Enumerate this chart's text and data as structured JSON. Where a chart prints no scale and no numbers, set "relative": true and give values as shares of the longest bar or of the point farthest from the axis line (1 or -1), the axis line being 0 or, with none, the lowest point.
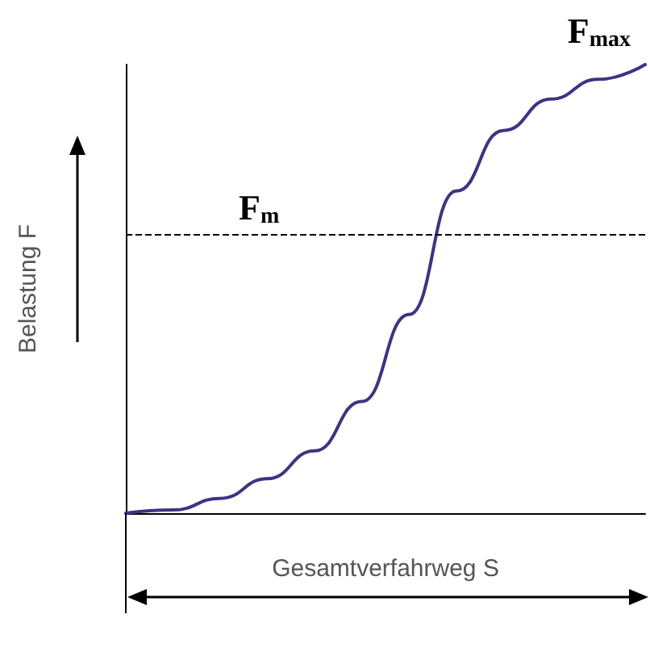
{
  "chart_data": {
    "type": "line",
    "relative": true,
    "xlabel": "Gesamtverfahrweg S",
    "ylabel": "Belastung F",
    "categories": [
      null,
      null,
      null,
      null,
      null,
      null,
      null,
      null,
      null,
      null,
      null,
      null
    ],
    "series": [
      {
        "color": "#3b3580",
        "values": [
          0,
          0.007,
          0.033,
          0.077,
          0.139,
          0.249,
          0.443,
          0.718,
          0.853,
          0.923,
          0.967,
          1
        ]
      }
    ],
    "ref_lines": [
      {
        "axis": "y",
        "value": 0.62,
        "label": "F$_{m}$",
        "color": "#000000",
        "line_style": "dashed"
      }
    ],
    "annotations": [
      "F$_{max}$"
    ],
    "grid": false,
    "marker": "none",
    "line_style": "solid"
  }
}
